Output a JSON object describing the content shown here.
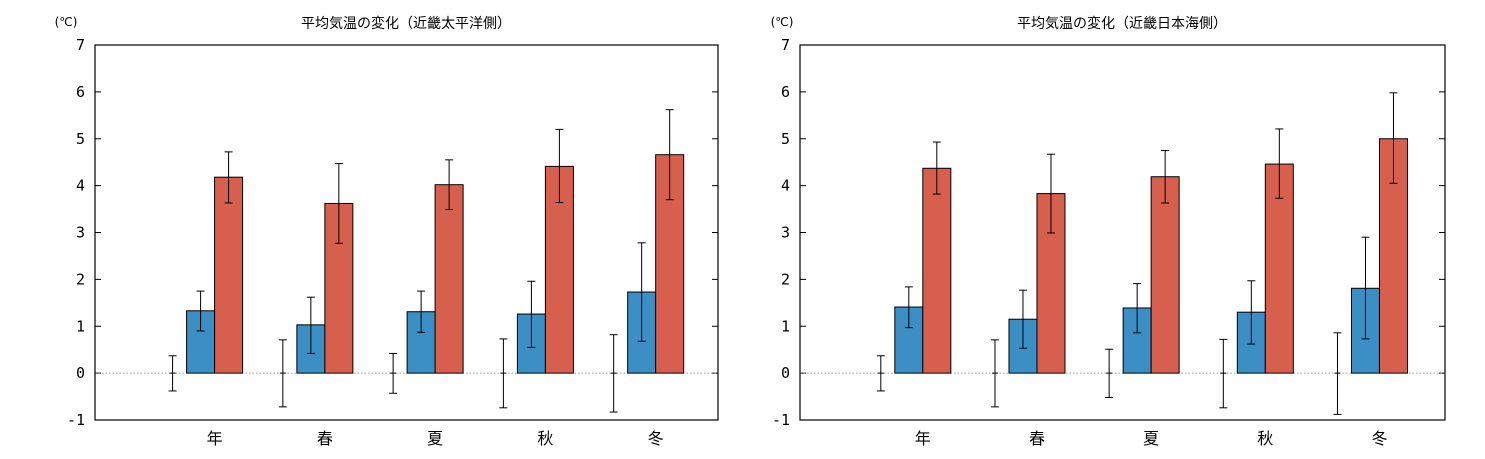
{
  "chart_data": [
    {
      "type": "bar",
      "title": "平均気温の変化（近畿太平洋側）",
      "unit": "(℃)",
      "categories": [
        "年",
        "春",
        "夏",
        "秋",
        "冬"
      ],
      "ylim": [
        -1,
        7
      ],
      "yticks": [
        -1,
        0,
        1,
        2,
        3,
        4,
        5,
        6,
        7
      ],
      "zero_line": "dotted",
      "legend": "none",
      "series": [
        {
          "color": "#ffffff",
          "values": [
            0,
            0,
            0,
            0,
            0
          ],
          "err_low": [
            -0.38,
            -0.72,
            -0.43,
            -0.74,
            -0.83
          ],
          "err_high": [
            0.37,
            0.71,
            0.42,
            0.73,
            0.82
          ]
        },
        {
          "color": "#3b8fc4",
          "values": [
            1.33,
            1.03,
            1.31,
            1.26,
            1.73
          ],
          "err_low": [
            0.9,
            0.42,
            0.87,
            0.55,
            0.68
          ],
          "err_high": [
            1.75,
            1.62,
            1.75,
            1.96,
            2.78
          ]
        },
        {
          "color": "#d6604d",
          "values": [
            4.18,
            3.62,
            4.02,
            4.41,
            4.66
          ],
          "err_low": [
            3.63,
            2.77,
            3.49,
            3.64,
            3.7
          ],
          "err_high": [
            4.72,
            4.47,
            4.55,
            5.2,
            5.62
          ]
        }
      ]
    },
    {
      "type": "bar",
      "title": "平均気温の変化（近畿日本海側）",
      "unit": "(℃)",
      "categories": [
        "年",
        "春",
        "夏",
        "秋",
        "冬"
      ],
      "ylim": [
        -1,
        7
      ],
      "yticks": [
        -1,
        0,
        1,
        2,
        3,
        4,
        5,
        6,
        7
      ],
      "zero_line": "dotted",
      "legend": "none",
      "series": [
        {
          "color": "#ffffff",
          "values": [
            0,
            0,
            0,
            0,
            0
          ],
          "err_low": [
            -0.38,
            -0.72,
            -0.52,
            -0.74,
            -0.88
          ],
          "err_high": [
            0.37,
            0.71,
            0.51,
            0.72,
            0.86
          ]
        },
        {
          "color": "#3b8fc4",
          "values": [
            1.41,
            1.15,
            1.39,
            1.3,
            1.81
          ],
          "err_low": [
            0.97,
            0.53,
            0.86,
            0.62,
            0.73
          ],
          "err_high": [
            1.84,
            1.77,
            1.91,
            1.97,
            2.9
          ]
        },
        {
          "color": "#d6604d",
          "values": [
            4.37,
            3.83,
            4.19,
            4.46,
            5.0
          ],
          "err_low": [
            3.82,
            2.99,
            3.63,
            3.73,
            4.05
          ],
          "err_high": [
            4.93,
            4.67,
            4.75,
            5.21,
            5.98
          ]
        }
      ]
    }
  ]
}
